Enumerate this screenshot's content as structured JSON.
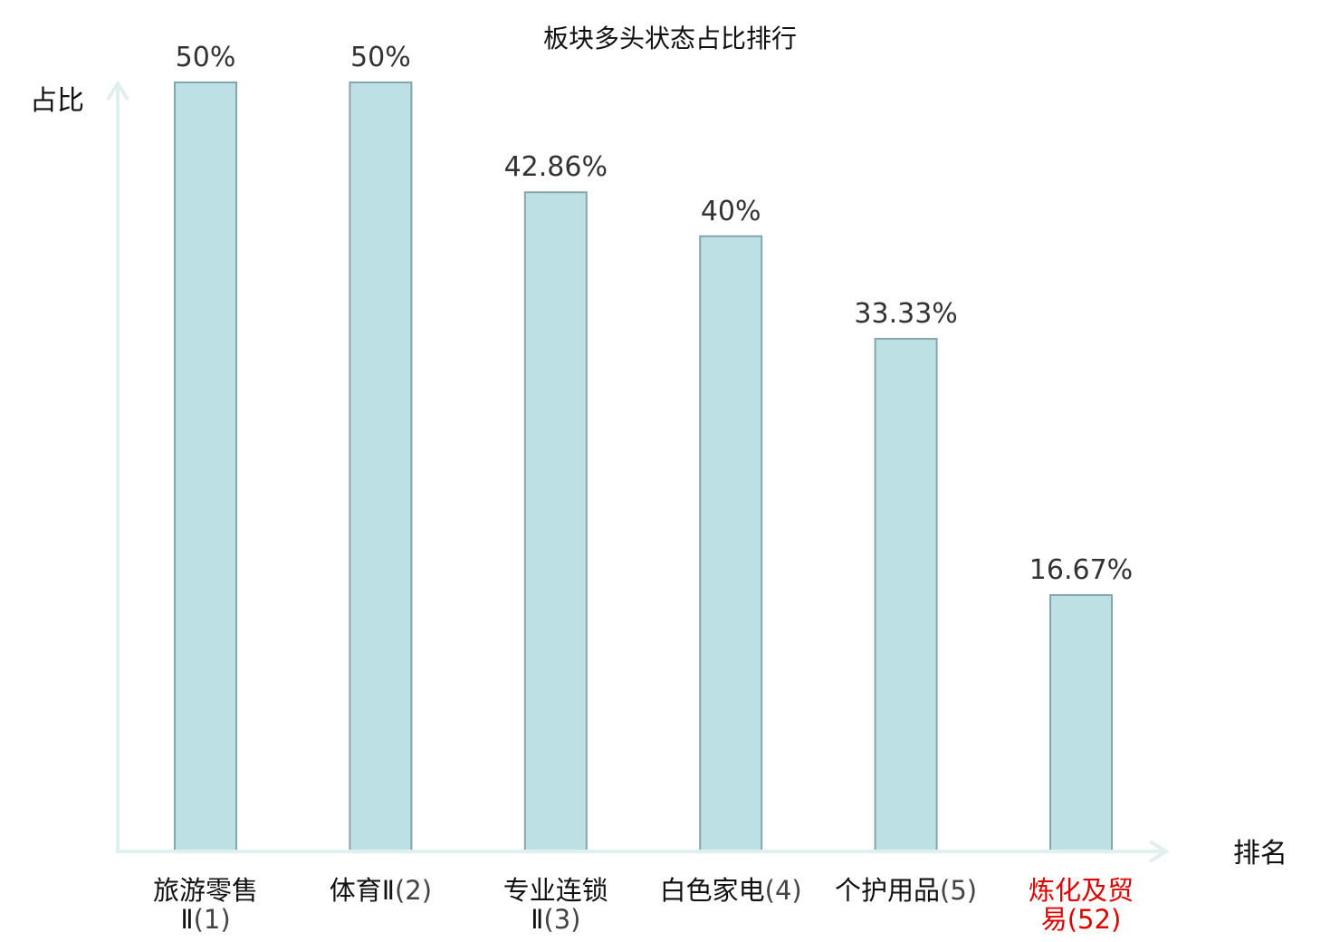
{
  "chart_data": {
    "type": "bar",
    "title": "板块多头状态占比排行",
    "ylabel": "占比",
    "xlabel": "排名",
    "ylim": [
      0,
      50
    ],
    "categories": [
      {
        "name_lines": [
          "旅游零售",
          "Ⅱ"
        ],
        "rank": "(1)"
      },
      {
        "name_lines": [
          "体育Ⅱ"
        ],
        "rank": "(2)"
      },
      {
        "name_lines": [
          "专业连锁",
          "Ⅱ"
        ],
        "rank": "(3)"
      },
      {
        "name_lines": [
          "白色家电"
        ],
        "rank": "(4)"
      },
      {
        "name_lines": [
          "个护用品"
        ],
        "rank": "(5)"
      },
      {
        "name_lines": [
          "炼化及贸",
          "易"
        ],
        "rank": "(52)",
        "highlight": true
      }
    ],
    "values": [
      50,
      50,
      42.86,
      40,
      33.33,
      16.67
    ],
    "value_labels": [
      "50%",
      "50%",
      "42.86%",
      "40%",
      "33.33%",
      "16.67%"
    ],
    "grid": false,
    "colors": {
      "bar_fill": "#bce0e3",
      "bar_stroke": "#86a6aa",
      "axis": "#dff0ee",
      "highlight_text": "#e00000"
    }
  }
}
